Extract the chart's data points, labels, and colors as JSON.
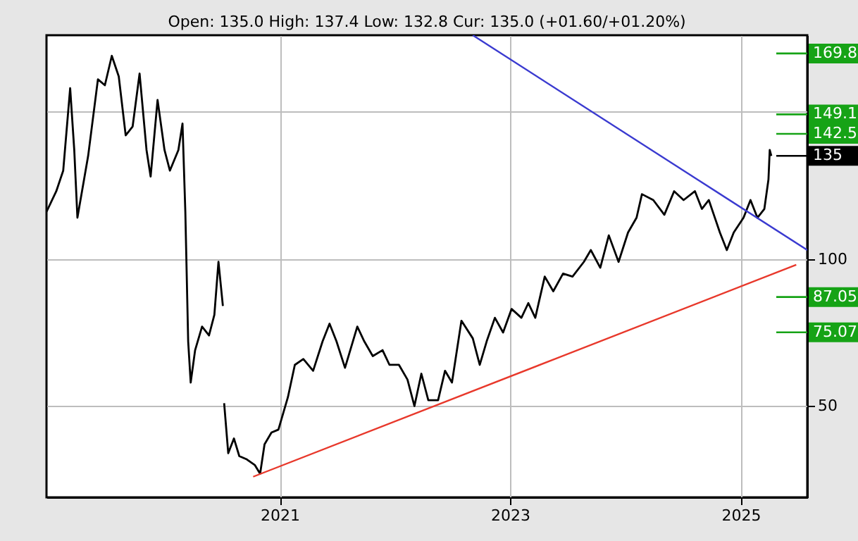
{
  "chart_data": {
    "type": "line",
    "subtitle": "Open: 135.0 High: 137.4 Low: 132.8 Cur: 135.0 (+01.60/+01.20%)",
    "xlim": [
      "2018-12-24",
      "2025-07-31"
    ],
    "xticks": [
      "2021",
      "2023",
      "2025"
    ],
    "ylim": [
      19,
      176
    ],
    "yticks": [
      {
        "value": 50,
        "label": "50"
      },
      {
        "value": 100,
        "label": "100"
      },
      {
        "value": 150,
        "label": null
      }
    ],
    "grid": true,
    "series": [
      {
        "color": "#000000",
        "x": [
          "2018-12-24",
          "2019-01-24",
          "2019-02-15",
          "2019-03-09",
          "2019-03-22",
          "2019-04-01",
          "2019-05-05",
          "2019-06-05",
          "2019-06-27",
          "2019-07-19",
          "2019-08-10",
          "2019-09-01",
          "2019-09-23",
          "2019-10-15",
          "2019-11-06",
          "2019-11-19",
          "2019-12-11",
          "2020-01-02",
          "2020-01-19",
          "2020-02-15",
          "2020-02-28",
          "2020-03-08",
          "2020-03-17",
          "2020-03-25",
          "2020-04-08",
          "2020-04-30",
          "2020-05-22",
          "2020-06-08",
          "2020-06-21",
          "2020-07-05",
          "2020-07-07",
          "2020-07-09",
          "2020-07-22",
          "2020-08-09",
          "2020-08-26",
          "2020-09-17",
          "2020-10-14",
          "2020-10-31",
          "2020-11-14",
          "2020-12-06",
          "2020-12-28",
          "2021-01-27",
          "2021-02-18",
          "2021-03-17",
          "2021-04-17",
          "2021-05-17",
          "2021-06-08",
          "2021-06-30",
          "2021-07-27",
          "2021-09-04",
          "2021-09-26",
          "2021-10-23",
          "2021-11-23",
          "2021-12-15",
          "2022-01-14",
          "2022-02-10",
          "2022-03-04",
          "2022-03-26",
          "2022-04-17",
          "2022-05-18",
          "2022-06-09",
          "2022-07-01",
          "2022-07-31",
          "2022-09-05",
          "2022-09-27",
          "2022-10-19",
          "2022-11-14",
          "2022-12-10",
          "2023-01-06",
          "2023-02-06",
          "2023-02-28",
          "2023-03-22",
          "2023-04-21",
          "2023-05-18",
          "2023-06-18",
          "2023-07-18",
          "2023-08-23",
          "2023-09-14",
          "2023-10-14",
          "2023-11-10",
          "2023-12-11",
          "2024-01-10",
          "2024-02-06",
          "2024-02-23",
          "2024-03-30",
          "2024-05-04",
          "2024-06-04",
          "2024-07-04",
          "2024-08-09",
          "2024-08-31",
          "2024-09-22",
          "2024-10-27",
          "2024-11-18",
          "2024-12-10",
          "2025-01-10",
          "2025-02-01",
          "2025-02-23",
          "2025-03-17",
          "2025-03-30",
          "2025-04-03",
          "2025-04-08"
        ],
        "values": [
          116,
          123,
          130,
          158,
          137,
          114,
          135,
          161,
          159,
          169,
          162,
          142,
          145,
          163,
          137,
          128,
          154,
          137,
          130,
          137,
          146,
          116,
          72,
          58,
          69,
          77,
          74,
          81,
          99,
          84,
          null,
          51,
          34,
          39,
          33,
          32,
          30,
          27,
          37,
          41,
          42,
          53,
          64,
          66,
          62,
          72,
          78,
          72,
          63,
          77,
          72,
          67,
          69,
          64,
          64,
          59,
          50,
          61,
          52,
          52,
          62,
          58,
          79,
          73,
          64,
          72,
          80,
          75,
          83,
          80,
          85,
          80,
          94,
          89,
          95,
          94,
          99,
          103,
          97,
          108,
          99,
          109,
          114,
          122,
          120,
          115,
          123,
          120,
          123,
          117,
          120,
          109,
          103,
          109,
          114,
          120,
          114,
          117,
          127,
          137,
          135
        ]
      },
      {
        "color": "#e8382b",
        "x": [
          "2020-10-09",
          "2025-06-26"
        ],
        "values": [
          26,
          98
        ]
      },
      {
        "color": "#3a3ad0",
        "x": [
          "2022-09-05",
          "2025-07-31"
        ],
        "values": [
          176,
          103
        ]
      }
    ],
    "ref_lines": [
      {
        "axis": "y",
        "value": 169.8,
        "label": "169.8",
        "color": "#16a316"
      },
      {
        "axis": "y",
        "value": 149.1,
        "label": "149.1",
        "color": "#16a316"
      },
      {
        "axis": "y",
        "value": 142.5,
        "label": "142.5",
        "color": "#16a316"
      },
      {
        "axis": "y",
        "value": 135,
        "label": "135",
        "color": "#000000"
      },
      {
        "axis": "y",
        "value": 87.05,
        "label": "87.05",
        "color": "#16a316"
      },
      {
        "axis": "y",
        "value": 75.07,
        "label": "75.07",
        "color": "#16a316"
      }
    ]
  }
}
